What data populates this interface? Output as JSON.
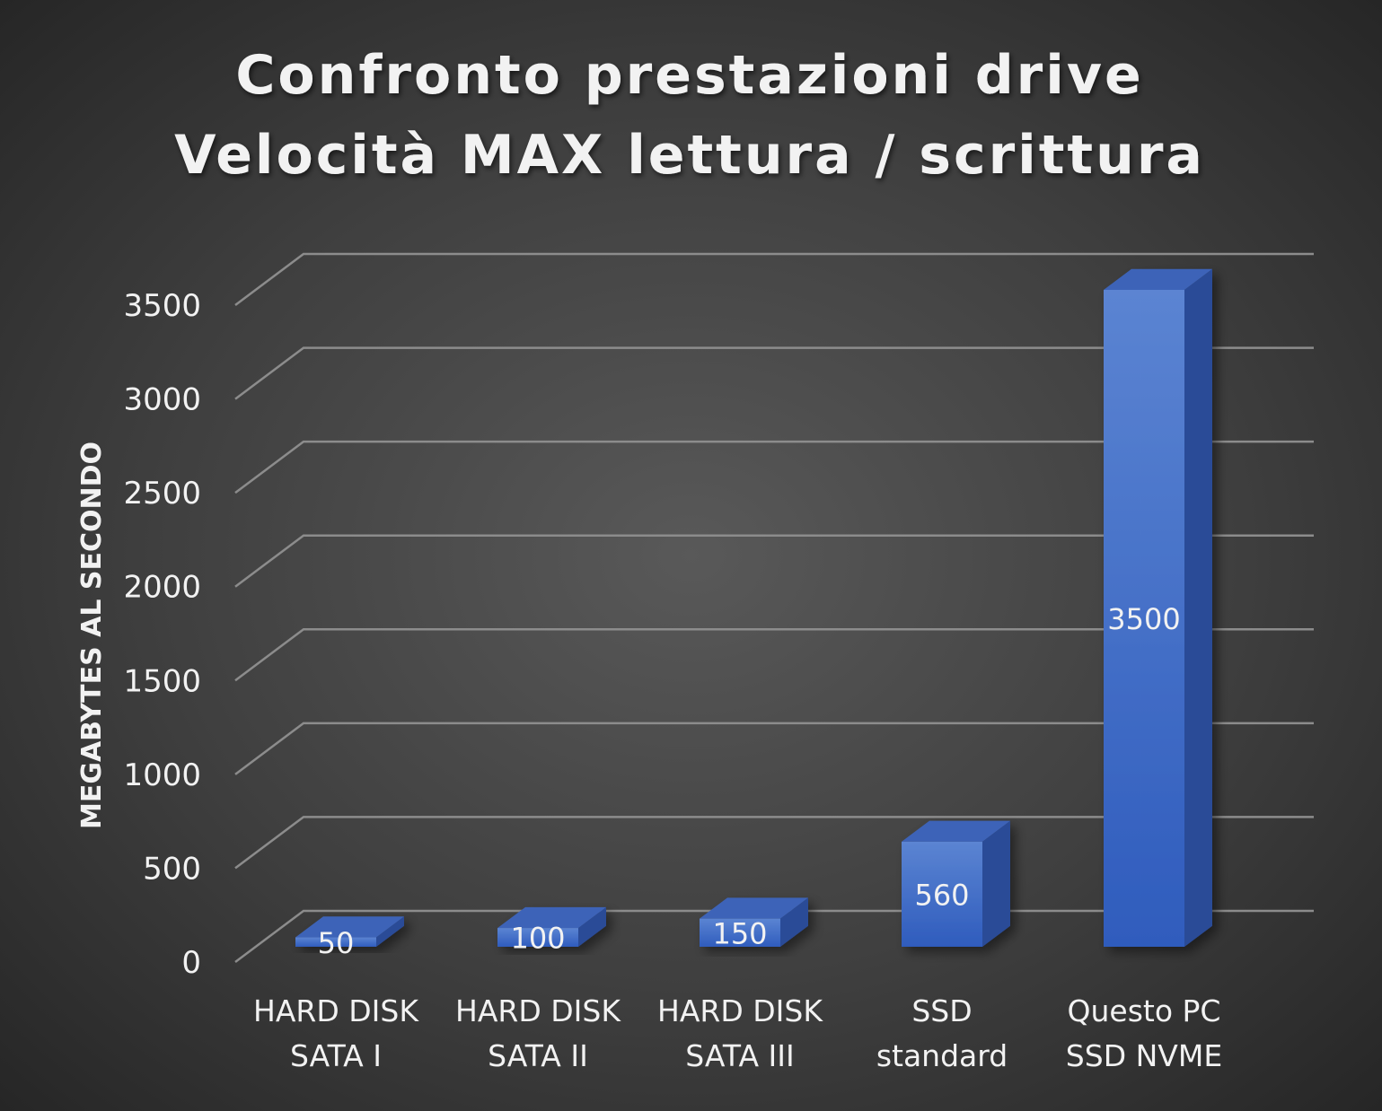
{
  "chart_data": {
    "type": "bar",
    "title_lines": [
      "Confronto prestazioni drive",
      "Velocità MAX lettura / scrittura"
    ],
    "ylabel": "MEGABYTES AL SECONDO",
    "xlabel": "",
    "categories": [
      [
        "HARD DISK",
        "SATA I"
      ],
      [
        "HARD DISK",
        "SATA II"
      ],
      [
        "HARD DISK",
        "SATA III"
      ],
      [
        "SSD",
        "standard"
      ],
      [
        "Questo PC",
        "SSD NVME"
      ]
    ],
    "values": [
      50,
      100,
      150,
      560,
      3500
    ],
    "ylim": [
      0,
      3500
    ],
    "yticks": [
      "0",
      "500",
      "1000",
      "1500",
      "2000",
      "2500",
      "3000",
      "3500"
    ],
    "grid": true,
    "style": "3d-column",
    "bar_color": "#4472c4",
    "data_labels": [
      "50",
      "100",
      "150",
      "560",
      "3500"
    ]
  }
}
